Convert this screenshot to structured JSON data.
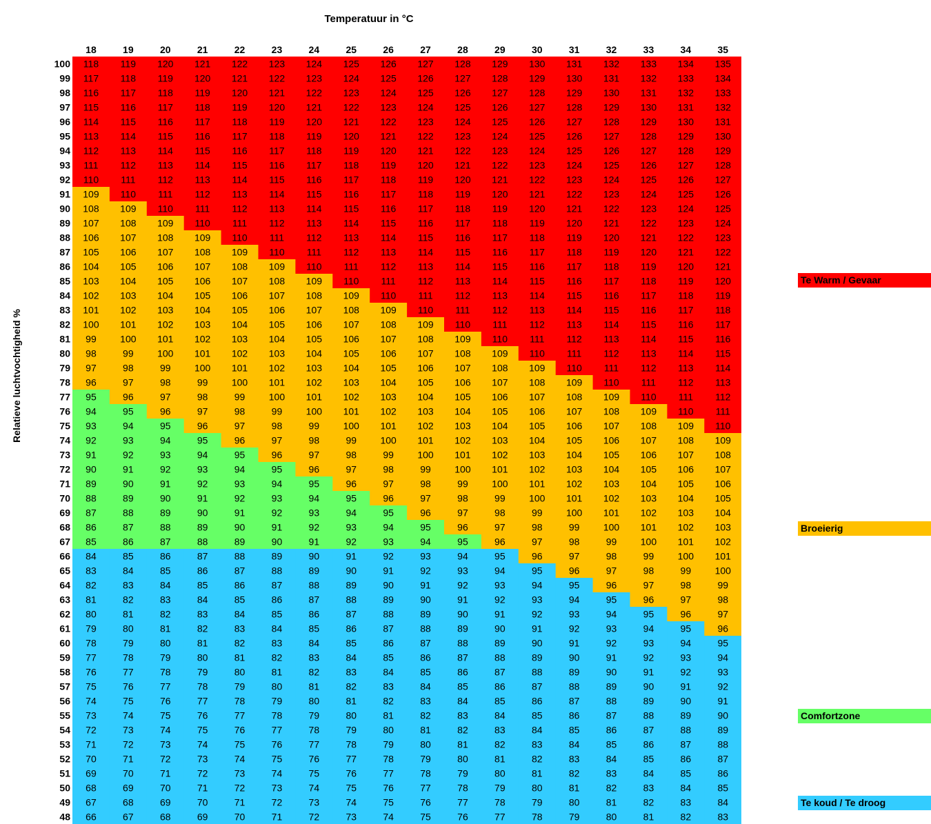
{
  "chart_data": {
    "type": "heatmap",
    "title": "Temperatuur in °C",
    "xlabel": "Temperatuur in °C",
    "ylabel": "Relatieve luchtvochtigheid %",
    "x": [
      18,
      19,
      20,
      21,
      22,
      23,
      24,
      25,
      26,
      27,
      28,
      29,
      30,
      31,
      32,
      33,
      34,
      35
    ],
    "y": [
      100,
      99,
      98,
      97,
      96,
      95,
      94,
      93,
      92,
      91,
      90,
      89,
      88,
      87,
      86,
      85,
      84,
      83,
      82,
      81,
      80,
      79,
      78,
      77,
      76,
      75,
      74,
      73,
      72,
      71,
      70,
      69,
      68,
      67,
      66,
      65,
      64,
      63,
      62,
      61,
      60,
      59,
      58,
      57,
      56,
      55,
      54,
      53,
      52,
      51,
      50,
      49,
      48
    ],
    "cell_rule": "value = x + y",
    "thresholds": [
      {
        "label": "Te koud / Te droog",
        "color": "#33ccff",
        "range": "value <= x + 66"
      },
      {
        "label": "Comfortzone",
        "color": "#66ff66",
        "range": "x + 66 < value <= 95"
      },
      {
        "label": "Broeierig",
        "color": "#ffc000",
        "range": "96 <= value <= 109"
      },
      {
        "label": "Te Warm / Gevaar",
        "color": "#ff0000",
        "range": "value >= 110"
      }
    ]
  },
  "legend": [
    {
      "label": "Te Warm / Gevaar",
      "color": "#ff0000"
    },
    {
      "label": "Broeierig",
      "color": "#ffc000"
    },
    {
      "label": "Comfortzone",
      "color": "#66ff66"
    },
    {
      "label": "Te koud / Te droog",
      "color": "#33ccff"
    }
  ],
  "colors": {
    "red": "#ff0000",
    "orange": "#ffc000",
    "green": "#66ff66",
    "blue": "#33ccff"
  }
}
